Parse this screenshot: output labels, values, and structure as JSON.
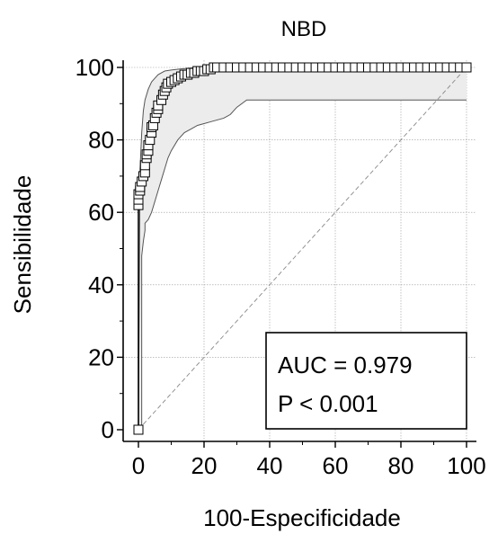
{
  "chart_data": {
    "type": "line",
    "title": "NBD",
    "xlabel": "100-Especificidade",
    "ylabel": "Sensibilidade",
    "xlim": [
      0,
      100
    ],
    "ylim": [
      0,
      100
    ],
    "x_ticks": [
      0,
      20,
      40,
      60,
      80,
      100
    ],
    "y_ticks": [
      0,
      20,
      40,
      60,
      80,
      100
    ],
    "grid": true,
    "legend": "none",
    "annotation": {
      "auc": "AUC = 0.979",
      "p": "P < 0.001",
      "placement": "bottom-right"
    },
    "series": [
      {
        "role": "roc-curve",
        "marker": "square",
        "color": "#000000",
        "x": [
          0,
          0,
          0,
          0,
          0.5,
          0.5,
          1,
          1.5,
          2,
          2,
          2.5,
          2.5,
          3,
          3,
          3.5,
          4,
          4,
          4.5,
          5,
          5.5,
          6,
          6,
          7,
          7.5,
          8,
          8.5,
          9,
          10,
          11,
          12,
          13,
          14,
          15,
          16,
          17,
          18,
          19,
          20,
          21,
          22,
          23,
          24,
          26,
          28,
          30,
          32,
          34,
          36,
          38,
          40,
          42,
          44,
          46,
          48,
          50,
          52,
          54,
          56,
          58,
          60,
          62,
          64,
          66,
          68,
          70,
          72,
          74,
          76,
          78,
          80,
          82,
          84,
          86,
          88,
          90,
          92,
          94,
          96,
          98,
          100
        ],
        "y": [
          0,
          62,
          63.5,
          65,
          66,
          67,
          68.5,
          70,
          71,
          73,
          75,
          76,
          77,
          78.5,
          80,
          82,
          83.5,
          84,
          86,
          87.5,
          88.5,
          89.5,
          91,
          92.5,
          93.5,
          94.5,
          95.5,
          96,
          96.5,
          97,
          97.5,
          98,
          98,
          98.5,
          98.5,
          99,
          99,
          99,
          99.5,
          99.5,
          100,
          100,
          100,
          100,
          100,
          100,
          100,
          100,
          100,
          100,
          100,
          100,
          100,
          100,
          100,
          100,
          100,
          100,
          100,
          100,
          100,
          100,
          100,
          100,
          100,
          100,
          100,
          100,
          100,
          100,
          100,
          100,
          100,
          100,
          100,
          100,
          100,
          100,
          100,
          100
        ]
      },
      {
        "role": "upper-ci",
        "color": "#555555",
        "x": [
          0,
          0.5,
          1,
          1.5,
          2,
          3,
          4,
          5,
          6,
          8,
          10,
          13,
          16,
          20,
          25,
          100
        ],
        "y": [
          0,
          72,
          82,
          88,
          91,
          94,
          96,
          97,
          98,
          99,
          99.3,
          99.6,
          99.8,
          99.9,
          100,
          100
        ]
      },
      {
        "role": "lower-ci",
        "color": "#555555",
        "x": [
          0,
          0.5,
          1,
          1,
          1.5,
          2,
          2,
          3,
          4,
          5,
          6,
          7,
          8,
          9,
          10,
          12,
          14,
          16,
          18,
          20,
          22,
          24,
          26,
          28,
          30,
          33,
          36,
          100
        ],
        "y": [
          0,
          0,
          0,
          48,
          52,
          55,
          57,
          58,
          60,
          63,
          66,
          69,
          72,
          75,
          77,
          80,
          82,
          83,
          84,
          84.5,
          85,
          85.5,
          86,
          87,
          89,
          91,
          91,
          91
        ]
      },
      {
        "role": "reference-diagonal",
        "color": "#888888",
        "x": [
          0,
          100
        ],
        "y": [
          0,
          100
        ]
      }
    ]
  }
}
